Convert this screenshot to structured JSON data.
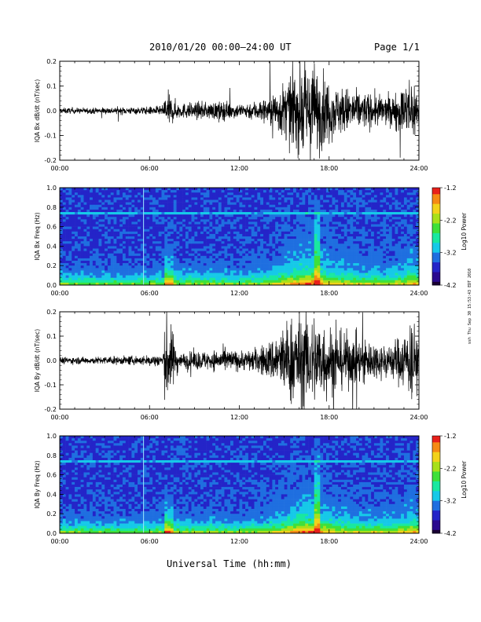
{
  "header": {
    "title": "2010/01/20  00:00–24:00 UT",
    "page": "Page 1/1"
  },
  "footer": {
    "xaxis_title": "Universal Time (hh:mm)",
    "side_stamp": "ssh Thu Sep 30 15:53:43 EDT 2010"
  },
  "colors": {
    "trace": "#000000",
    "colormap": [
      "#1a0033",
      "#2b0a8f",
      "#2424c8",
      "#1f6fe0",
      "#16c9e8",
      "#19e8a0",
      "#3ee03a",
      "#a8e01a",
      "#f2d21a",
      "#f58a14",
      "#e8201a"
    ]
  },
  "chart_data": [
    {
      "type": "line",
      "name": "bx-waveform",
      "ylabel": "IQA Bx dB/dt (nT/sec)",
      "ylim": [
        -0.2,
        0.2
      ],
      "yticks": [
        "0.2",
        "0.1",
        "0.0",
        "-0.1",
        "-0.2"
      ],
      "xticks": [
        "00:00",
        "06:00",
        "12:00",
        "18:00",
        "24:00"
      ],
      "xlim_hours": [
        0,
        24
      ],
      "envelope": {
        "x_hours": [
          0,
          2,
          4,
          5.5,
          6.9,
          7.1,
          7.4,
          8,
          9,
          10,
          11,
          12,
          13,
          14,
          14.5,
          15,
          15.5,
          16,
          16.5,
          17,
          17.5,
          18,
          18.5,
          19,
          20,
          21,
          22,
          23,
          23.5,
          24
        ],
        "amplitude": [
          0.012,
          0.012,
          0.015,
          0.015,
          0.02,
          0.09,
          0.06,
          0.03,
          0.035,
          0.035,
          0.04,
          0.03,
          0.04,
          0.06,
          0.09,
          0.12,
          0.15,
          0.18,
          0.2,
          0.2,
          0.16,
          0.13,
          0.1,
          0.1,
          0.08,
          0.07,
          0.06,
          0.1,
          0.15,
          0.1
        ]
      }
    },
    {
      "type": "heatmap",
      "name": "bx-spectrogram",
      "ylabel": "IQA Bx Freq (Hz)",
      "ylim": [
        0.0,
        1.0
      ],
      "yticks": [
        "1.0",
        "0.8",
        "0.6",
        "0.4",
        "0.2",
        "0.0"
      ],
      "xticks": [
        "00:00",
        "06:00",
        "12:00",
        "18:00",
        "24:00"
      ],
      "colorbar": {
        "label": "Log10 Power",
        "ticks": [
          "-1.2",
          "-2.2",
          "-3.2",
          "-4.2"
        ],
        "range": [
          -4.2,
          -1.2
        ]
      }
    },
    {
      "type": "line",
      "name": "by-waveform",
      "ylabel": "IQA By dB/dt (nT/sec)",
      "ylim": [
        -0.2,
        0.2
      ],
      "yticks": [
        "0.2",
        "0.1",
        "0.0",
        "-0.1",
        "-0.2"
      ],
      "xticks": [
        "00:00",
        "06:00",
        "12:00",
        "18:00",
        "24:00"
      ],
      "xlim_hours": [
        0,
        24
      ],
      "envelope": {
        "x_hours": [
          0,
          2,
          4,
          5.5,
          6.9,
          7.1,
          7.4,
          8,
          9,
          10,
          11,
          12,
          13,
          14,
          14.5,
          15,
          15.5,
          16,
          16.5,
          17,
          17.5,
          18,
          18.5,
          19,
          20,
          21,
          22,
          23,
          23.5,
          24
        ],
        "amplitude": [
          0.015,
          0.015,
          0.018,
          0.02,
          0.03,
          0.2,
          0.15,
          0.03,
          0.04,
          0.04,
          0.05,
          0.04,
          0.05,
          0.08,
          0.12,
          0.15,
          0.19,
          0.2,
          0.2,
          0.2,
          0.18,
          0.15,
          0.12,
          0.12,
          0.1,
          0.08,
          0.07,
          0.12,
          0.18,
          0.1
        ]
      }
    },
    {
      "type": "heatmap",
      "name": "by-spectrogram",
      "ylabel": "IQA By Freq (Hz)",
      "ylim": [
        0.0,
        1.0
      ],
      "yticks": [
        "1.0",
        "0.8",
        "0.6",
        "0.4",
        "0.2",
        "0.0"
      ],
      "xticks": [
        "00:00",
        "06:00",
        "12:00",
        "18:00",
        "24:00"
      ],
      "colorbar": {
        "label": "Log10 Power",
        "ticks": [
          "-1.2",
          "-2.2",
          "-3.2",
          "-4.2"
        ],
        "range": [
          -4.2,
          -1.2
        ]
      }
    }
  ]
}
